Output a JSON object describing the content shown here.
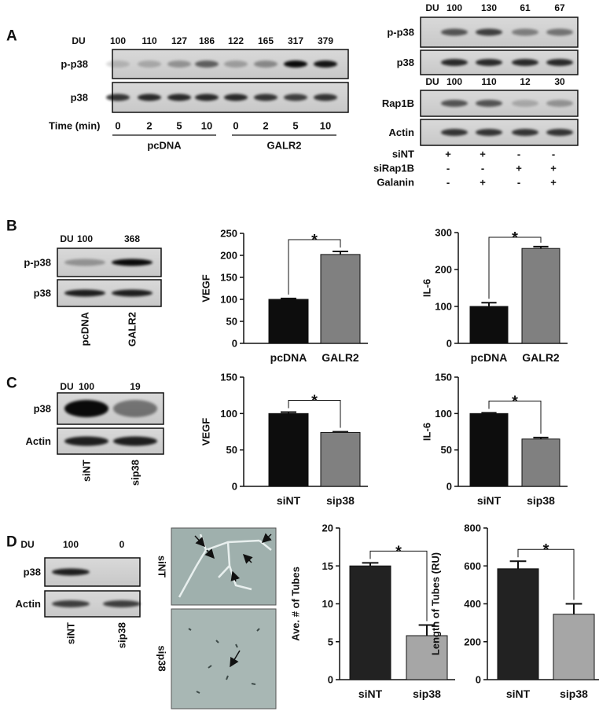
{
  "panel_labels": [
    "A",
    "B",
    "C",
    "D"
  ],
  "blots": {
    "a_left": {
      "du_label": "DU",
      "du": [
        100,
        110,
        127,
        186,
        122,
        165,
        317,
        379
      ],
      "rows": [
        "p-p38",
        "p38"
      ],
      "time_label": "Time (min)",
      "times": [
        0,
        2,
        5,
        10,
        0,
        2,
        5,
        10
      ],
      "groups": [
        "pcDNA",
        "GALR2"
      ]
    },
    "a_right": {
      "blocks": [
        {
          "du_label": "DU",
          "du": [
            100,
            130,
            61,
            67
          ],
          "rows": [
            "p-p38",
            "p38"
          ]
        },
        {
          "du_label": "DU",
          "du": [
            100,
            110,
            12,
            30
          ],
          "rows": [
            "Rap1B",
            "Actin"
          ]
        }
      ],
      "conditions": [
        {
          "label": "siNT",
          "marks": [
            "+",
            "+",
            "-",
            "-"
          ]
        },
        {
          "label": "siRap1B",
          "marks": [
            "-",
            "-",
            "+",
            "+"
          ]
        },
        {
          "label": "Galanin",
          "marks": [
            "-",
            "+",
            "-",
            "+"
          ]
        }
      ]
    },
    "b": {
      "du_label": "DU",
      "du": [
        100,
        368
      ],
      "rows": [
        "p-p38",
        "p38"
      ],
      "lanes": [
        "pcDNA",
        "GALR2"
      ]
    },
    "c": {
      "du_label": "DU",
      "du": [
        100,
        19
      ],
      "rows": [
        "p38",
        "Actin"
      ],
      "lanes": [
        "siNT",
        "sip38"
      ]
    },
    "d": {
      "du_label": "DU",
      "du": [
        100,
        0
      ],
      "rows": [
        "p38",
        "Actin"
      ],
      "lanes": [
        "siNT",
        "sip38"
      ]
    }
  },
  "micrographs": {
    "labels": [
      "siNT",
      "sip38"
    ]
  },
  "chart_data": [
    {
      "type": "bar",
      "y_label": "VEGF",
      "categories": [
        "pcDNA",
        "GALR2"
      ],
      "values": [
        100,
        202
      ],
      "errors": [
        2,
        7
      ],
      "colors": [
        "#0d0d0d",
        "#808080"
      ],
      "ylim": [
        0,
        250
      ],
      "yticks": [
        0,
        50,
        100,
        150,
        200,
        250
      ],
      "significance": "*"
    },
    {
      "type": "bar",
      "y_label": "IL-6",
      "categories": [
        "pcDNA",
        "GALR2"
      ],
      "values": [
        100,
        257
      ],
      "errors": [
        10,
        5
      ],
      "colors": [
        "#0d0d0d",
        "#808080"
      ],
      "ylim": [
        0,
        300
      ],
      "yticks": [
        0,
        100,
        200,
        300
      ],
      "significance": "*"
    },
    {
      "type": "bar",
      "y_label": "VEGF",
      "categories": [
        "siNT",
        "sip38"
      ],
      "values": [
        100,
        74
      ],
      "errors": [
        2,
        1
      ],
      "colors": [
        "#0d0d0d",
        "#808080"
      ],
      "ylim": [
        0,
        150
      ],
      "yticks": [
        0,
        50,
        100,
        150
      ],
      "significance": "*"
    },
    {
      "type": "bar",
      "y_label": "IL-6",
      "categories": [
        "siNT",
        "sip38"
      ],
      "values": [
        100,
        65
      ],
      "errors": [
        1,
        2
      ],
      "colors": [
        "#0d0d0d",
        "#808080"
      ],
      "ylim": [
        0,
        150
      ],
      "yticks": [
        0,
        50,
        100,
        150
      ],
      "significance": "*"
    },
    {
      "type": "bar",
      "y_label": "Ave. # of Tubes",
      "categories": [
        "siNT",
        "sip38"
      ],
      "values": [
        15,
        5.8
      ],
      "errors": [
        0.4,
        1.4
      ],
      "colors": [
        "#222222",
        "#a6a6a6"
      ],
      "ylim": [
        0,
        20
      ],
      "yticks": [
        0,
        5,
        10,
        15,
        20
      ],
      "significance": "*"
    },
    {
      "type": "bar",
      "y_label": "Length of Tubes (RU)",
      "categories": [
        "siNT",
        "sip38"
      ],
      "values": [
        585,
        345
      ],
      "errors": [
        40,
        55
      ],
      "colors": [
        "#222222",
        "#a6a6a6"
      ],
      "ylim": [
        0,
        800
      ],
      "yticks": [
        0,
        200,
        400,
        600,
        800
      ],
      "significance": "*"
    }
  ]
}
